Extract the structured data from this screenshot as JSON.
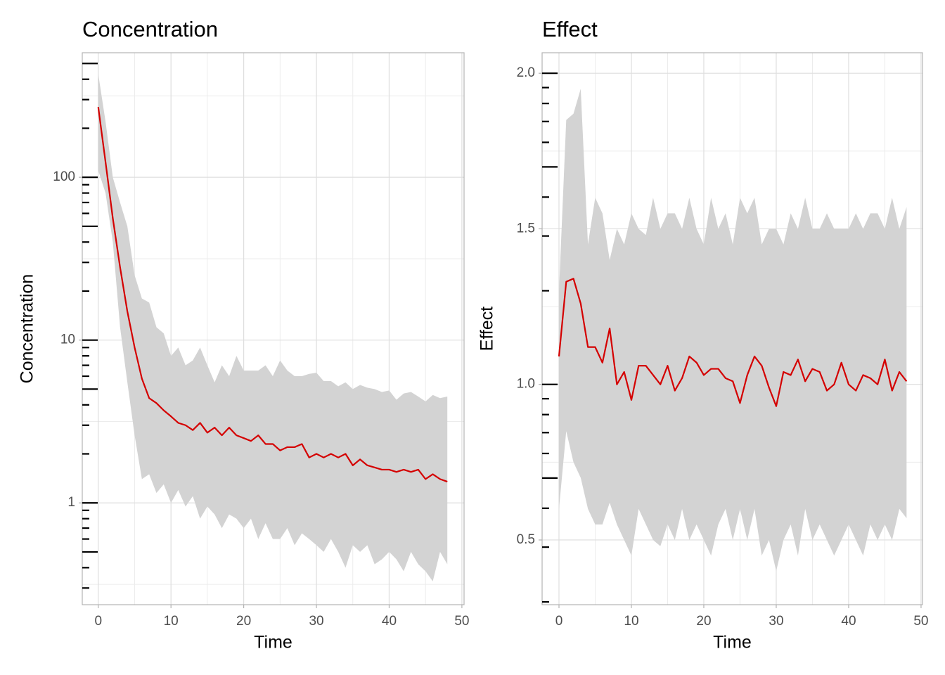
{
  "chart_data": [
    {
      "type": "line",
      "title": "Concentration",
      "xlabel": "Time",
      "ylabel": "Concentration",
      "log_y": true,
      "color": "#d40000",
      "ribbon_color": "#d3d3d3",
      "grid": true,
      "xlim": [
        -2.2,
        50.3
      ],
      "ylim": [
        0.237,
        582
      ],
      "xticks": [
        0,
        10,
        20,
        30,
        40,
        50
      ],
      "yticks": [
        1,
        10,
        100
      ],
      "minor_xgrid": [
        5,
        15,
        25,
        35,
        45
      ],
      "minor_ygrid": [
        0.316,
        3.16,
        31.6,
        316
      ],
      "axis_ticks_long": [
        0.5,
        1,
        5,
        10,
        50,
        100,
        500
      ],
      "axis_ticks_short": [
        0.3,
        0.4,
        0.6,
        0.7,
        0.8,
        0.9,
        2,
        3,
        4,
        6,
        7,
        8,
        9,
        20,
        30,
        40,
        60,
        70,
        80,
        90,
        200,
        300,
        400
      ],
      "x": [
        0,
        1,
        2,
        3,
        4,
        5,
        6,
        7,
        8,
        9,
        10,
        11,
        12,
        13,
        14,
        15,
        16,
        17,
        18,
        19,
        20,
        21,
        22,
        23,
        24,
        25,
        26,
        27,
        28,
        29,
        30,
        31,
        32,
        33,
        34,
        35,
        36,
        37,
        38,
        39,
        40,
        41,
        42,
        43,
        44,
        45,
        46,
        47,
        48
      ],
      "values": [
        270,
        124,
        56,
        28,
        15,
        9,
        5.8,
        4.4,
        4.1,
        3.7,
        3.4,
        3.1,
        3.0,
        2.8,
        3.1,
        2.7,
        2.9,
        2.6,
        2.9,
        2.6,
        2.5,
        2.4,
        2.6,
        2.3,
        2.3,
        2.1,
        2.2,
        2.2,
        2.3,
        1.9,
        2.0,
        1.9,
        2.0,
        1.9,
        2.0,
        1.7,
        1.85,
        1.7,
        1.65,
        1.6,
        1.6,
        1.55,
        1.6,
        1.55,
        1.6,
        1.4,
        1.5,
        1.4,
        1.35
      ],
      "upper": [
        430,
        220,
        100,
        70,
        50,
        25,
        18,
        17,
        12,
        11,
        8,
        9,
        7,
        7.5,
        9,
        7,
        5.5,
        7,
        6,
        8,
        6.5,
        6.5,
        6.5,
        7,
        6,
        7.5,
        6.5,
        6,
        6,
        6.2,
        6.3,
        5.6,
        5.6,
        5.2,
        5.5,
        5.0,
        5.3,
        5.1,
        5.0,
        4.8,
        4.9,
        4.3,
        4.7,
        4.8,
        4.5,
        4.2,
        4.6,
        4.4,
        4.5
      ],
      "lower": [
        110,
        80,
        40,
        12,
        5.5,
        2.6,
        1.4,
        1.5,
        1.15,
        1.3,
        1.0,
        1.2,
        0.95,
        1.1,
        0.8,
        0.95,
        0.85,
        0.7,
        0.85,
        0.8,
        0.7,
        0.8,
        0.6,
        0.75,
        0.6,
        0.6,
        0.7,
        0.55,
        0.65,
        0.6,
        0.55,
        0.5,
        0.6,
        0.5,
        0.4,
        0.55,
        0.5,
        0.55,
        0.42,
        0.45,
        0.5,
        0.45,
        0.38,
        0.5,
        0.42,
        0.38,
        0.33,
        0.5,
        0.42
      ]
    },
    {
      "type": "line",
      "title": "Effect",
      "xlabel": "Time",
      "ylabel": "Effect",
      "log_y": false,
      "color": "#d40000",
      "ribbon_color": "#d3d3d3",
      "grid": true,
      "xlim": [
        -2.33,
        50.2
      ],
      "ylim": [
        0.292,
        2.066
      ],
      "xticks": [
        0,
        10,
        20,
        30,
        40,
        50
      ],
      "yticks": [
        0.5,
        {
          "value": 1,
          "label": "1.0"
        },
        1.5,
        {
          "value": 2,
          "label": "2.0"
        }
      ],
      "minor_xgrid": [
        5,
        15,
        25,
        35,
        45
      ],
      "minor_ygrid": [
        0.75,
        1.25,
        1.75
      ],
      "axis_ticks_long": [
        2.0,
        1.699,
        1.0,
        0.699
      ],
      "axis_ticks_short": [
        1.954,
        1.903,
        1.845,
        1.778,
        1.602,
        1.477,
        1.301,
        0.954,
        0.903,
        0.845,
        0.778,
        0.602,
        0.477,
        0.301
      ],
      "x": [
        0,
        1,
        2,
        3,
        4,
        5,
        6,
        7,
        8,
        9,
        10,
        11,
        12,
        13,
        14,
        15,
        16,
        17,
        18,
        19,
        20,
        21,
        22,
        23,
        24,
        25,
        26,
        27,
        28,
        29,
        30,
        31,
        32,
        33,
        34,
        35,
        36,
        37,
        38,
        39,
        40,
        41,
        42,
        43,
        44,
        45,
        46,
        47,
        48
      ],
      "values": [
        1.09,
        1.33,
        1.34,
        1.26,
        1.12,
        1.12,
        1.07,
        1.18,
        1.0,
        1.04,
        0.95,
        1.06,
        1.06,
        1.03,
        1.0,
        1.06,
        0.98,
        1.02,
        1.09,
        1.07,
        1.03,
        1.05,
        1.05,
        1.02,
        1.01,
        0.94,
        1.03,
        1.09,
        1.06,
        0.99,
        0.93,
        1.04,
        1.03,
        1.08,
        1.01,
        1.05,
        1.04,
        0.98,
        1.0,
        1.07,
        1.0,
        0.98,
        1.03,
        1.02,
        1.0,
        1.08,
        0.98,
        1.04,
        1.01
      ],
      "upper": [
        1.3,
        1.85,
        1.87,
        1.95,
        1.45,
        1.6,
        1.55,
        1.4,
        1.5,
        1.45,
        1.55,
        1.5,
        1.48,
        1.6,
        1.5,
        1.55,
        1.55,
        1.5,
        1.6,
        1.5,
        1.45,
        1.6,
        1.5,
        1.55,
        1.45,
        1.6,
        1.55,
        1.6,
        1.45,
        1.5,
        1.5,
        1.45,
        1.55,
        1.5,
        1.6,
        1.5,
        1.5,
        1.55,
        1.5,
        1.5,
        1.5,
        1.55,
        1.5,
        1.55,
        1.55,
        1.5,
        1.6,
        1.5,
        1.57
      ],
      "lower": [
        0.6,
        0.85,
        0.75,
        0.7,
        0.6,
        0.55,
        0.55,
        0.62,
        0.55,
        0.5,
        0.45,
        0.6,
        0.55,
        0.5,
        0.48,
        0.55,
        0.5,
        0.6,
        0.5,
        0.55,
        0.5,
        0.45,
        0.55,
        0.6,
        0.5,
        0.6,
        0.5,
        0.6,
        0.45,
        0.5,
        0.4,
        0.5,
        0.55,
        0.45,
        0.6,
        0.5,
        0.55,
        0.5,
        0.45,
        0.5,
        0.55,
        0.5,
        0.45,
        0.55,
        0.5,
        0.55,
        0.5,
        0.6,
        0.57
      ]
    }
  ]
}
